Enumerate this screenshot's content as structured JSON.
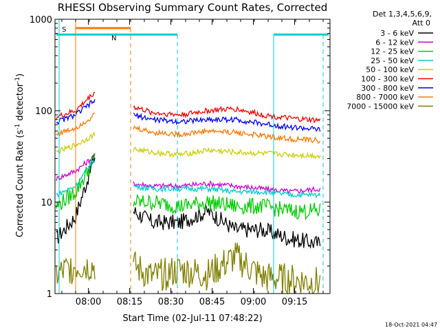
{
  "chart_data": {
    "type": "line",
    "title": "RHESSI Observing Summary Count Rates, Corrected",
    "xlabel": "Start Time (02-Jul-11 07:48:22)",
    "ylabel_main": "Corrected Count Rate (s",
    "ylabel_sup1": "-1",
    "ylabel_mid": " detector",
    "ylabel_sup2": "-1",
    "ylabel_end": ")",
    "y_scale": "log",
    "ylim": [
      1,
      1000
    ],
    "x_range": [
      "07:48:22",
      "09:27"
    ],
    "y_ticks": [
      "1",
      "10",
      "100",
      "1000"
    ],
    "x_ticks": [
      "08:00",
      "08:15",
      "08:30",
      "08:45",
      "09:00",
      "09:15"
    ],
    "legend_title": "Det 1,3,4,5,6,9,",
    "legend_sub": "Att 0",
    "legend_position": "right",
    "series": [
      {
        "name": "3 - 6 keV",
        "color": "#000000",
        "values": [
          4,
          7,
          32,
          8,
          6,
          6,
          8,
          5,
          5,
          4,
          3.5
        ]
      },
      {
        "name": "6 - 12 keV",
        "color": "#cc00cc",
        "values": [
          18,
          22,
          32,
          16,
          15,
          15,
          16,
          15,
          14,
          13,
          14
        ]
      },
      {
        "name": "12 - 25 keV",
        "color": "#00cc00",
        "values": [
          9,
          13,
          30,
          10,
          10,
          9,
          10,
          9,
          9,
          8,
          8
        ]
      },
      {
        "name": "25 - 50 keV",
        "color": "#00cccc",
        "values": [
          12,
          15,
          30,
          15,
          14,
          14,
          14,
          13,
          13,
          12,
          12
        ]
      },
      {
        "name": "50 - 100 keV",
        "color": "#cccc00",
        "values": [
          35,
          42,
          55,
          38,
          35,
          33,
          37,
          35,
          34,
          33,
          32
        ]
      },
      {
        "name": "100 - 300 keV",
        "color": "#ee0000",
        "values": [
          85,
          100,
          160,
          110,
          95,
          90,
          100,
          105,
          90,
          82,
          78
        ]
      },
      {
        "name": "300 - 800 keV",
        "color": "#0000ee",
        "values": [
          75,
          90,
          130,
          90,
          80,
          76,
          80,
          80,
          72,
          66,
          62
        ]
      },
      {
        "name": "800 - 7000 keV",
        "color": "#ff7700",
        "values": [
          55,
          65,
          90,
          65,
          58,
          55,
          60,
          58,
          53,
          49,
          47
        ]
      },
      {
        "name": "7000 - 15000 keV",
        "color": "#7f7f00",
        "values": [
          1.6,
          2,
          2,
          2,
          1.5,
          1.8,
          1.6,
          2.5,
          1.5,
          1.4,
          1.3
        ]
      }
    ],
    "flags": [
      {
        "label": "S",
        "color": "#ff7700"
      },
      {
        "label": "N",
        "color": "#00cccc"
      }
    ],
    "footer_date": "18-Oct-2021 04:47"
  }
}
